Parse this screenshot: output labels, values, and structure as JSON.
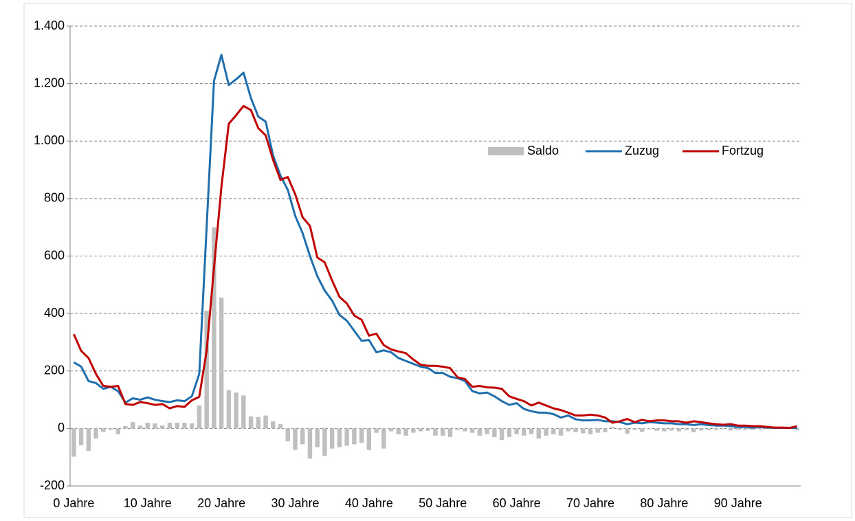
{
  "chart_data": {
    "type": "combo",
    "categories": [
      "0 Jahre",
      null,
      null,
      null,
      null,
      null,
      null,
      null,
      null,
      null,
      "10 Jahre",
      null,
      null,
      null,
      null,
      null,
      null,
      null,
      null,
      null,
      "20 Jahre",
      null,
      null,
      null,
      null,
      null,
      null,
      null,
      null,
      null,
      "30 Jahre",
      null,
      null,
      null,
      null,
      null,
      null,
      null,
      null,
      null,
      "40 Jahre",
      null,
      null,
      null,
      null,
      null,
      null,
      null,
      null,
      null,
      "50 Jahre",
      null,
      null,
      null,
      null,
      null,
      null,
      null,
      null,
      null,
      "60 Jahre",
      null,
      null,
      null,
      null,
      null,
      null,
      null,
      null,
      null,
      "70 Jahre",
      null,
      null,
      null,
      null,
      null,
      null,
      null,
      null,
      null,
      "80 Jahre",
      null,
      null,
      null,
      null,
      null,
      null,
      null,
      null,
      null,
      "90 Jahre",
      null,
      null,
      null,
      null,
      null,
      null,
      null,
      null
    ],
    "series": [
      {
        "name": "Saldo",
        "type": "bar",
        "color": "#bfbfbf",
        "values": [
          -98,
          -58,
          -78,
          -35,
          -12,
          -5,
          -20,
          8,
          22,
          10,
          20,
          18,
          10,
          20,
          20,
          20,
          18,
          80,
          410,
          700,
          455,
          133,
          125,
          115,
          42,
          40,
          45,
          25,
          15,
          -45,
          -75,
          -55,
          -105,
          -65,
          -95,
          -70,
          -65,
          -60,
          -55,
          -50,
          -75,
          -15,
          -70,
          -10,
          -20,
          -25,
          -15,
          -10,
          -8,
          -25,
          -25,
          -30,
          -5,
          -10,
          -15,
          -25,
          -20,
          -30,
          -40,
          -30,
          -20,
          -25,
          -20,
          -35,
          -25,
          -20,
          -25,
          -10,
          -13,
          -17,
          -20,
          -15,
          -13,
          5,
          -5,
          -18,
          -5,
          -12,
          -3,
          -8,
          -10,
          -7,
          -10,
          -5,
          -13,
          -7,
          -6,
          -5,
          -3,
          -7,
          -5,
          -5,
          -5,
          -3,
          -2,
          -1,
          -1,
          0,
          -6
        ]
      },
      {
        "name": "Zuzug",
        "type": "line",
        "color": "#1f6fae",
        "values": [
          230,
          215,
          165,
          158,
          138,
          145,
          130,
          90,
          105,
          100,
          108,
          100,
          95,
          92,
          98,
          95,
          112,
          190,
          700,
          1210,
          1300,
          1195,
          1215,
          1238,
          1150,
          1085,
          1068,
          950,
          880,
          830,
          740,
          680,
          600,
          530,
          480,
          445,
          395,
          375,
          340,
          305,
          308,
          265,
          272,
          265,
          245,
          235,
          225,
          215,
          210,
          193,
          193,
          180,
          175,
          165,
          130,
          122,
          125,
          112,
          95,
          82,
          88,
          68,
          60,
          55,
          55,
          50,
          38,
          45,
          32,
          28,
          28,
          30,
          25,
          25,
          22,
          15,
          20,
          18,
          22,
          20,
          18,
          18,
          15,
          15,
          12,
          15,
          12,
          10,
          10,
          8,
          5,
          5,
          3,
          5,
          3,
          2,
          2,
          2,
          2
        ]
      },
      {
        "name": "Fortzug",
        "type": "line",
        "color": "#c00000",
        "values": [
          328,
          270,
          245,
          190,
          148,
          145,
          148,
          85,
          82,
          92,
          88,
          82,
          85,
          70,
          78,
          75,
          98,
          110,
          270,
          560,
          840,
          1060,
          1090,
          1122,
          1108,
          1045,
          1020,
          935,
          865,
          875,
          815,
          735,
          705,
          595,
          578,
          515,
          458,
          435,
          393,
          378,
          323,
          330,
          290,
          275,
          268,
          262,
          240,
          222,
          218,
          218,
          215,
          210,
          178,
          172,
          145,
          148,
          143,
          142,
          138,
          112,
          103,
          95,
          80,
          90,
          80,
          70,
          64,
          55,
          45,
          45,
          48,
          45,
          38,
          20,
          25,
          33,
          22,
          30,
          25,
          28,
          28,
          25,
          25,
          20,
          25,
          22,
          18,
          15,
          13,
          15,
          10,
          10,
          8,
          8,
          5,
          3,
          3,
          2,
          8
        ]
      }
    ],
    "ylim": [
      -200,
      1400
    ],
    "yticks": [
      -200,
      0,
      200,
      400,
      600,
      800,
      {
        "value": 1000,
        "label": "1.000"
      },
      {
        "value": 1200,
        "label": "1.200"
      },
      {
        "value": 1400,
        "label": "1.400"
      }
    ],
    "grid": true,
    "legend": "inside-right"
  }
}
